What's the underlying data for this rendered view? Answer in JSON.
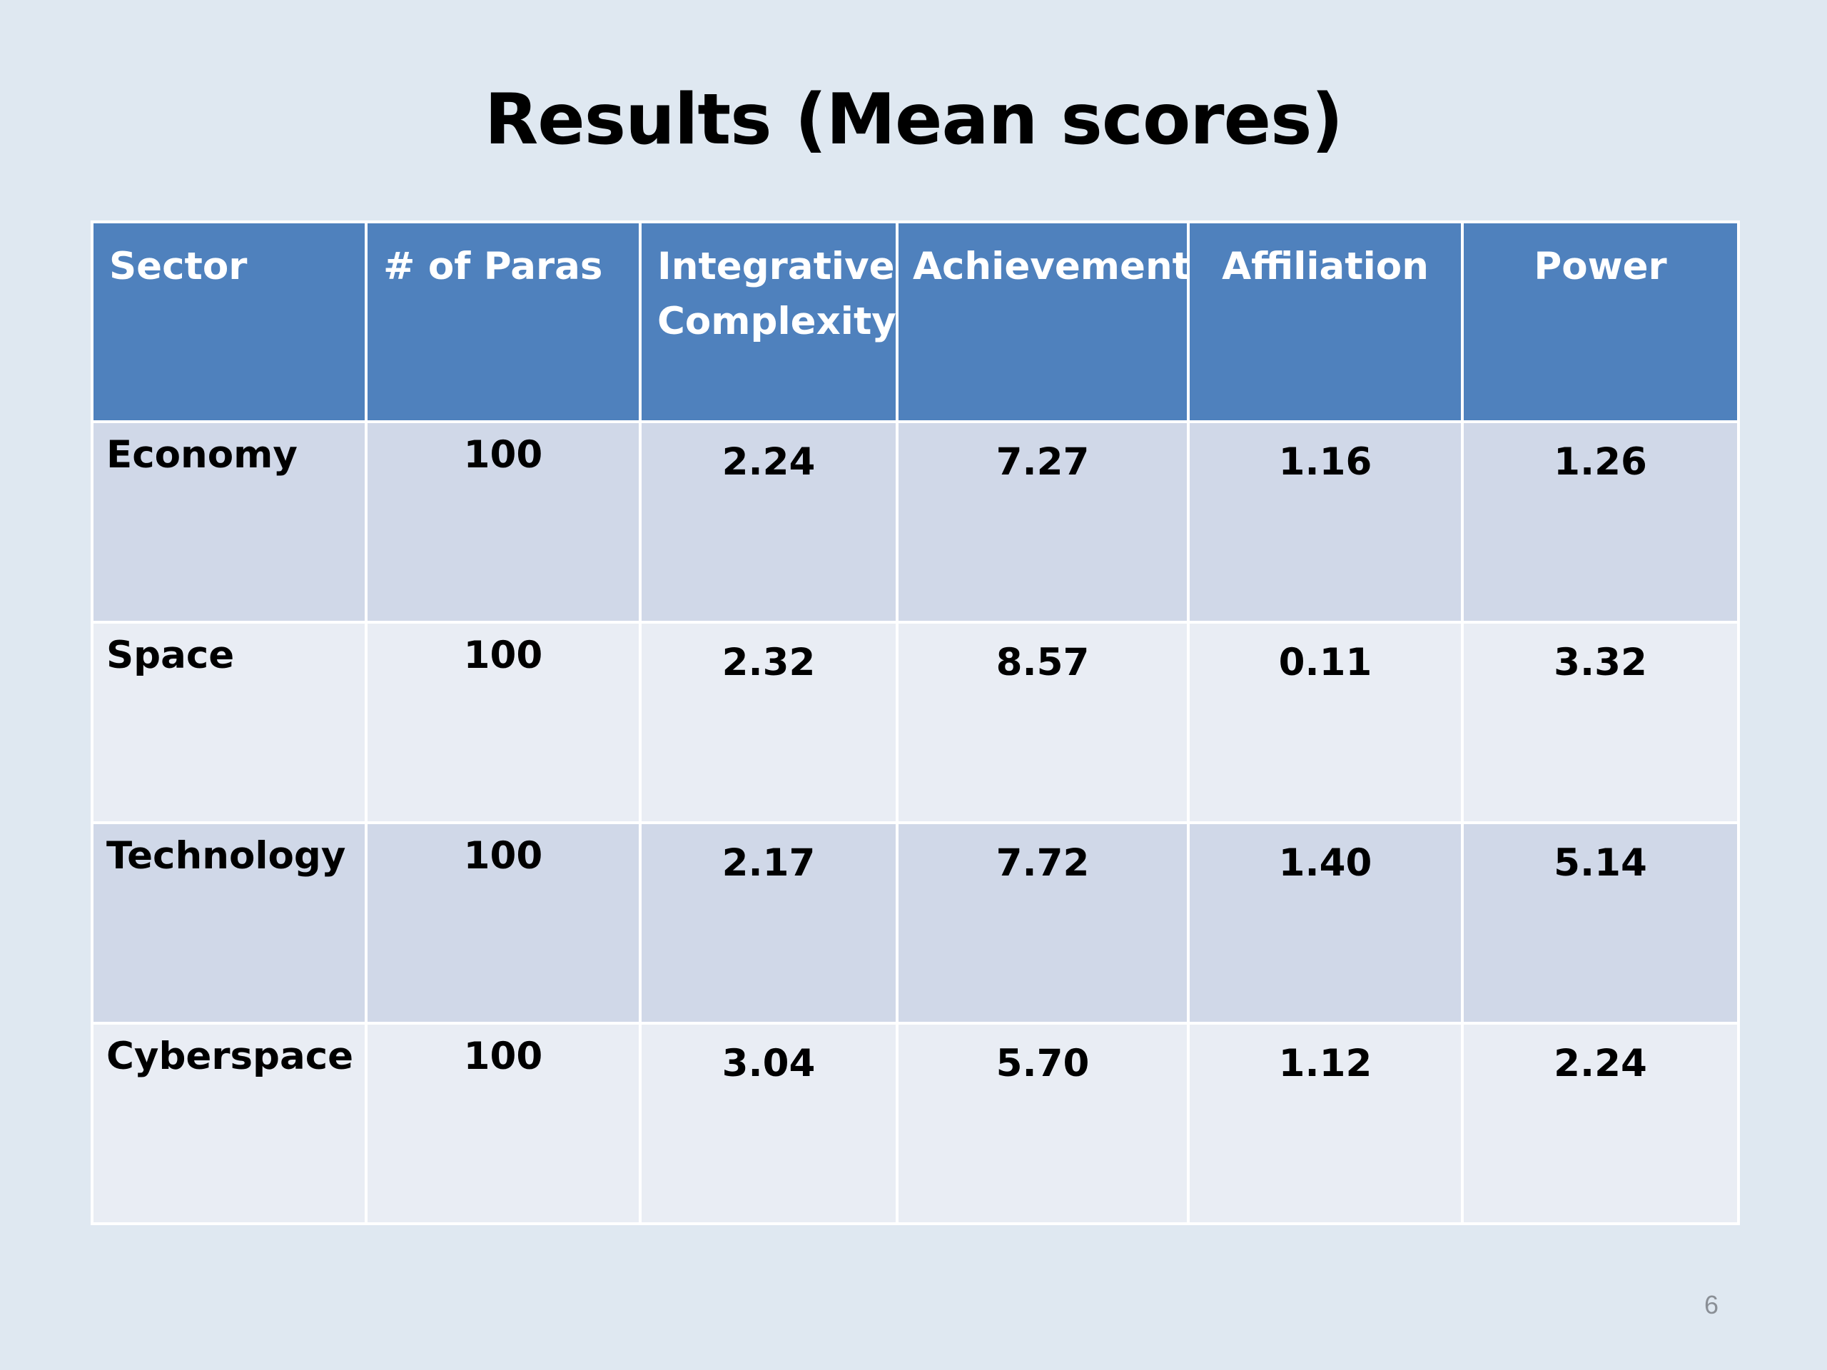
{
  "slide": {
    "title": "Results (Mean scores)",
    "page_number": "6"
  },
  "table": {
    "headers": [
      "Sector",
      "# of Paras",
      "Integrative Complexity",
      "Achievement",
      "Affiliation",
      "Power"
    ],
    "rows": [
      {
        "sector": "Economy",
        "paras": "100",
        "integrative": "2.24",
        "achievement": "7.27",
        "affiliation": "1.16",
        "power": "1.26"
      },
      {
        "sector": "Space",
        "paras": "100",
        "integrative": "2.32",
        "achievement": "8.57",
        "affiliation": "0.11",
        "power": "3.32"
      },
      {
        "sector": "Technology",
        "paras": "100",
        "integrative": "2.17",
        "achievement": "7.72",
        "affiliation": "1.40",
        "power": "5.14"
      },
      {
        "sector": "Cyberspace",
        "paras": "100",
        "integrative": "3.04",
        "achievement": "5.70",
        "affiliation": "1.12",
        "power": "2.24"
      }
    ]
  },
  "colors": {
    "background": "#dfe8f1",
    "header": "#4f81bd",
    "row_dark": "#d0d8e8",
    "row_light": "#e9edf4"
  }
}
